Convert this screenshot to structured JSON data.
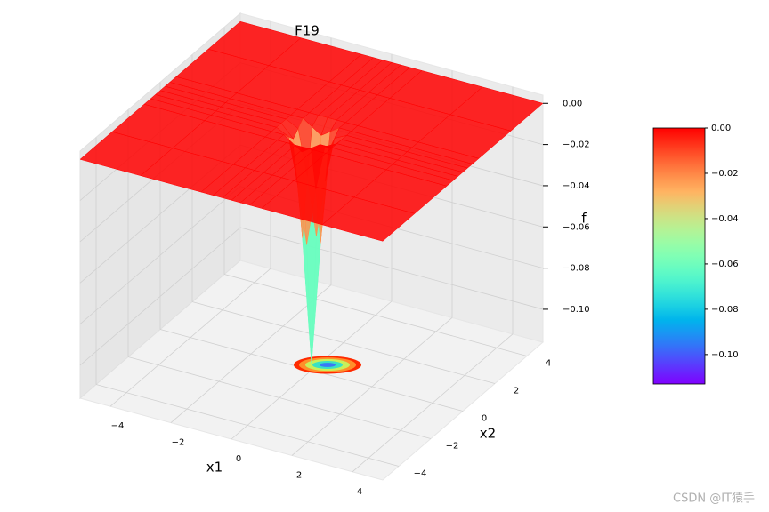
{
  "chart_data": {
    "type": "surface3d",
    "title": "F19",
    "xlabel": "x1",
    "ylabel": "x2",
    "zlabel": "f",
    "x": [
      -5,
      -3,
      -1,
      -0.6,
      -0.3,
      0,
      0.3,
      0.6,
      1,
      3,
      5
    ],
    "y": [
      -5,
      -3,
      -1,
      -0.6,
      -0.3,
      0,
      0.3,
      0.6,
      1,
      3,
      5
    ],
    "z": [
      [
        0,
        0,
        0,
        0,
        0,
        0,
        0,
        0,
        0,
        0,
        0
      ],
      [
        0,
        0,
        0,
        0,
        0,
        0,
        0,
        0,
        0,
        0,
        0
      ],
      [
        0,
        0,
        0,
        0,
        0,
        0,
        0,
        0,
        0,
        0,
        0
      ],
      [
        0,
        0,
        0,
        0,
        -0.003,
        -0.006,
        -0.003,
        0,
        0,
        0,
        0
      ],
      [
        0,
        0,
        0,
        -0.003,
        -0.025,
        -0.053,
        -0.025,
        -0.003,
        0,
        0,
        0
      ],
      [
        0,
        0,
        0,
        -0.006,
        -0.053,
        -0.113,
        -0.053,
        -0.006,
        0,
        0,
        0
      ],
      [
        0,
        0,
        0,
        -0.003,
        -0.025,
        -0.053,
        -0.025,
        -0.003,
        0,
        0,
        0
      ],
      [
        0,
        0,
        0,
        0,
        -0.003,
        -0.006,
        -0.003,
        0,
        0,
        0,
        0
      ],
      [
        0,
        0,
        0,
        0,
        0,
        0,
        0,
        0,
        0,
        0,
        0
      ],
      [
        0,
        0,
        0,
        0,
        0,
        0,
        0,
        0,
        0,
        0,
        0
      ],
      [
        0,
        0,
        0,
        0,
        0,
        0,
        0,
        0,
        0,
        0,
        0
      ]
    ],
    "xlim": [
      -5,
      5
    ],
    "ylim": [
      -5,
      5
    ],
    "zlim": [
      -0.116,
      0.004
    ],
    "xticks": [
      {
        "value": -4,
        "label": "−4"
      },
      {
        "value": -2,
        "label": "−2"
      },
      0,
      2,
      4
    ],
    "yticks": [
      {
        "value": -4,
        "label": "−4"
      },
      {
        "value": -2,
        "label": "−2"
      },
      0,
      2,
      4
    ],
    "zticks": [
      {
        "value": 0,
        "label": "0.00"
      },
      {
        "value": -0.02,
        "label": "−0.02"
      },
      {
        "value": -0.04,
        "label": "−0.04"
      },
      {
        "value": -0.06,
        "label": "−0.06"
      },
      {
        "value": -0.08,
        "label": "−0.08"
      },
      {
        "value": -0.1,
        "label": "−0.10"
      }
    ],
    "colormap": "rainbow",
    "clim": [
      -0.113,
      0
    ],
    "cbar_ticks": [
      {
        "value": 0,
        "label": "0.00"
      },
      {
        "value": -0.02,
        "label": "−0.02"
      },
      {
        "value": -0.04,
        "label": "−0.04"
      },
      {
        "value": -0.06,
        "label": "−0.06"
      },
      {
        "value": -0.08,
        "label": "−0.08"
      },
      {
        "value": -0.1,
        "label": "−0.10"
      }
    ],
    "grid": true
  },
  "watermark": "CSDN @IT猿手"
}
